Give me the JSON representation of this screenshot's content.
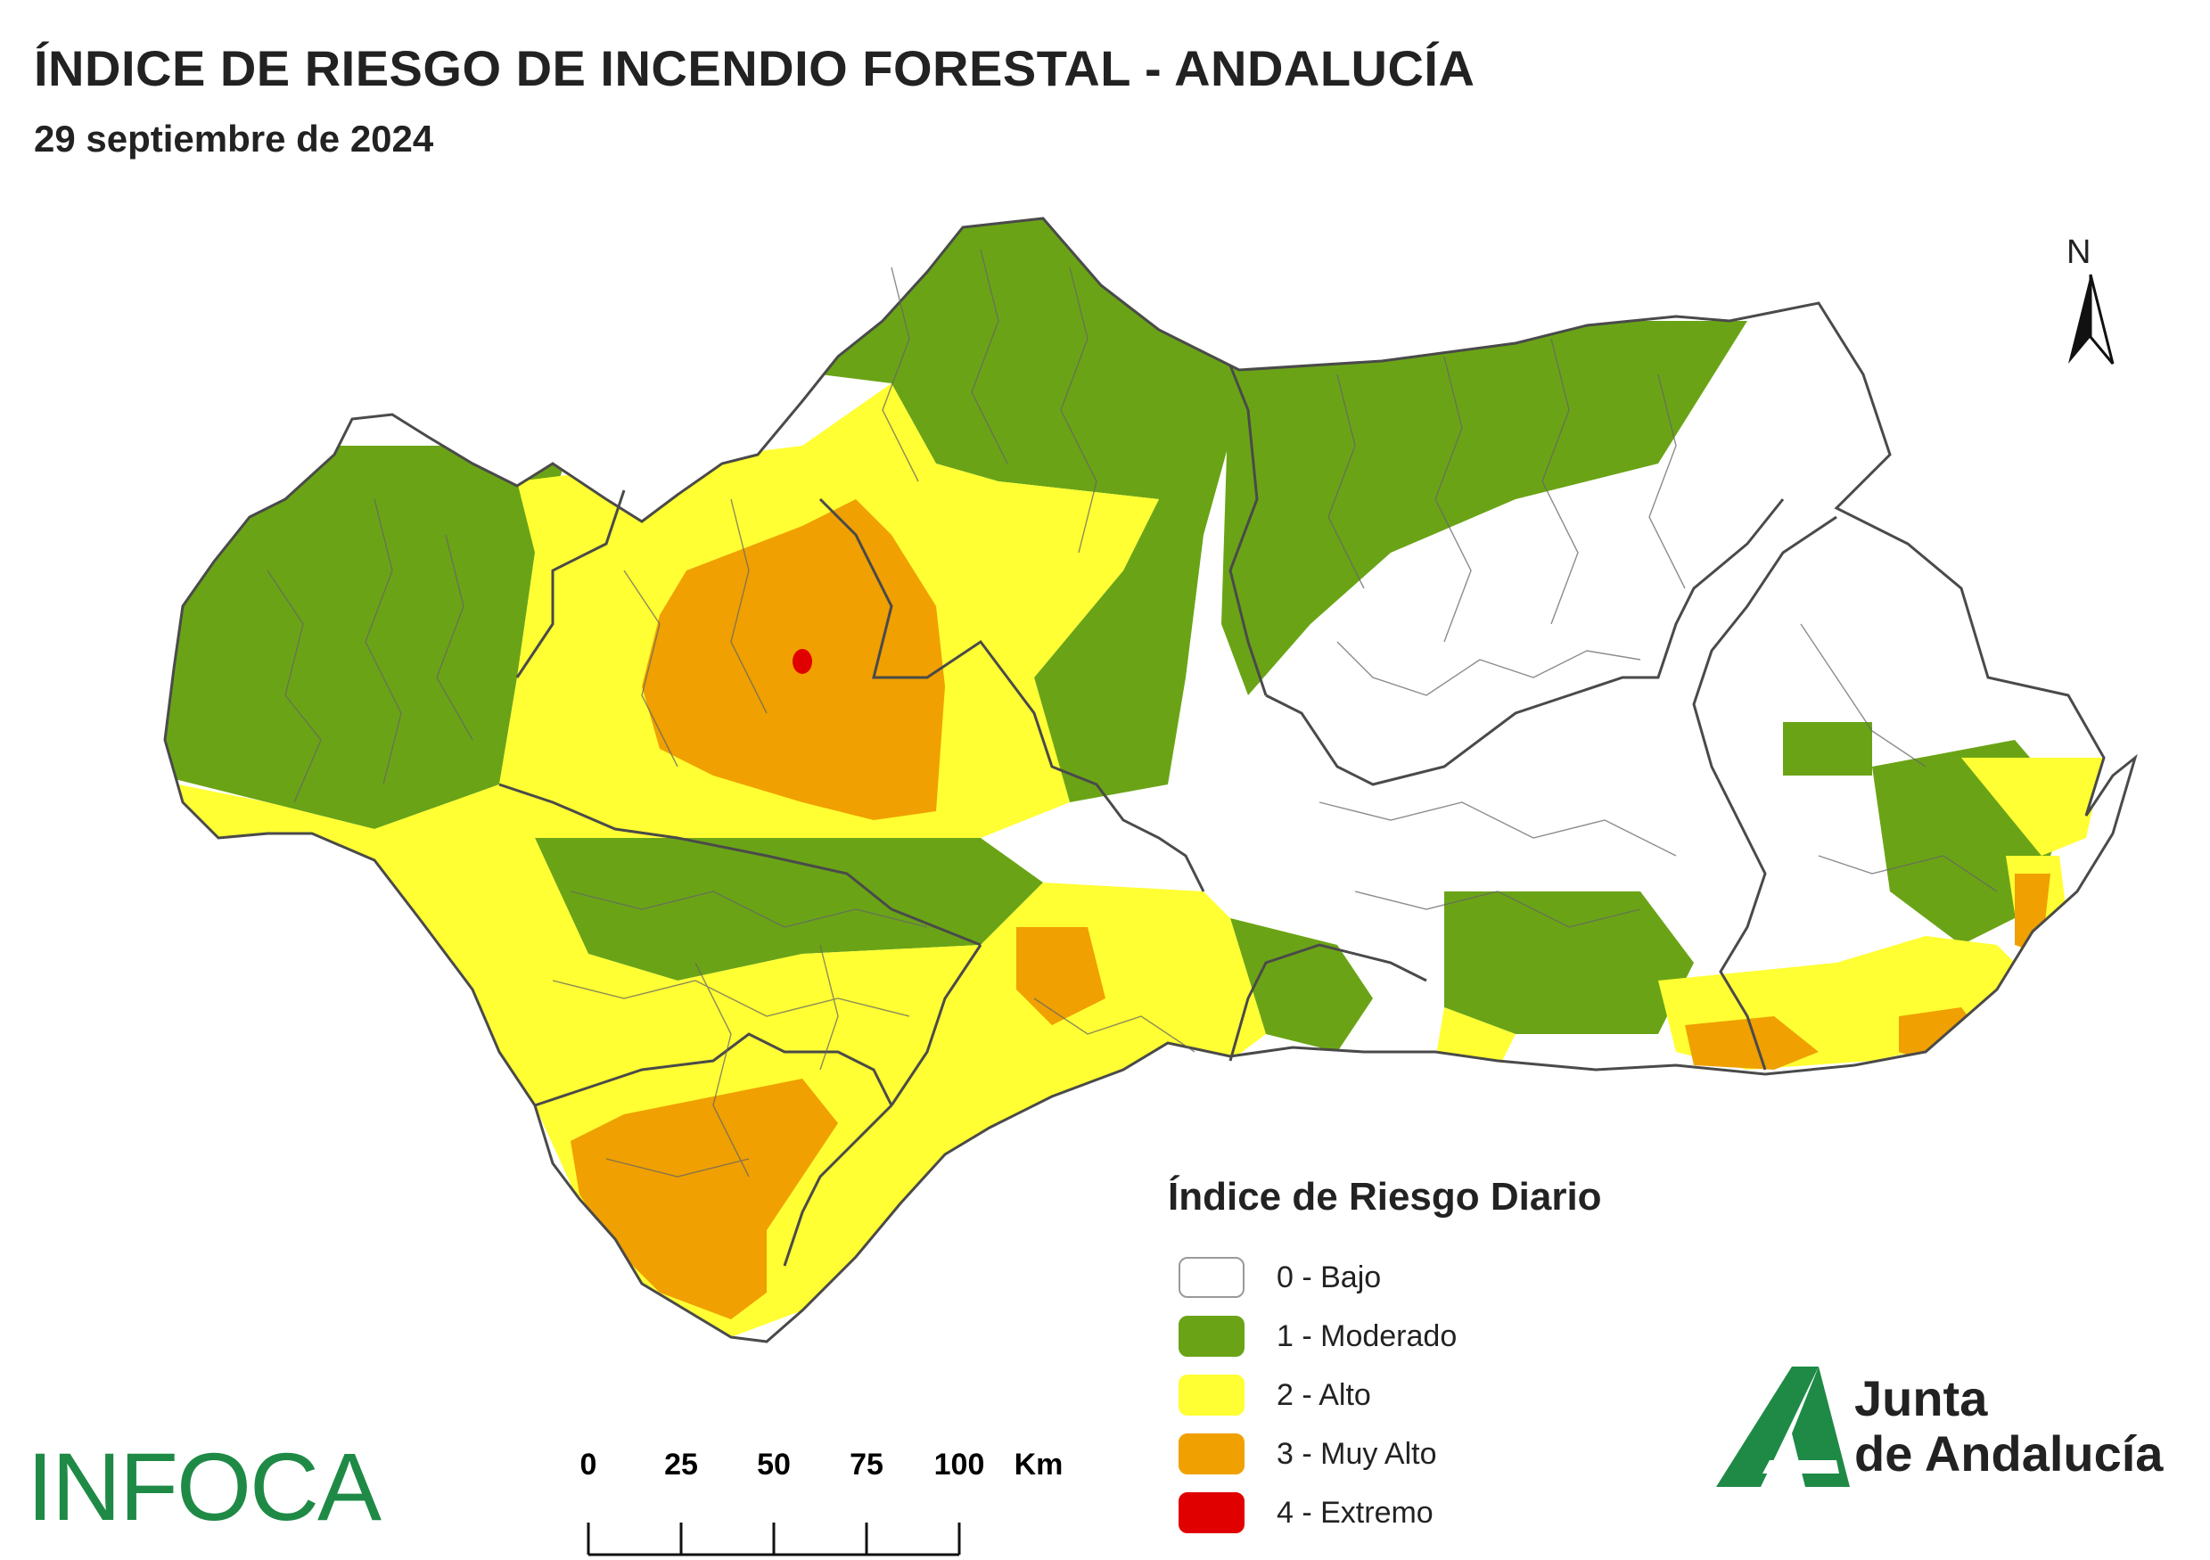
{
  "header": {
    "title": "ÍNDICE DE RIESGO DE INCENDIO FORESTAL - ANDALUCÍA",
    "date": "29 septiembre de 2024"
  },
  "north_arrow": {
    "label": "N"
  },
  "legend": {
    "title": "Índice de Riesgo Diario",
    "items": [
      {
        "label": "0 - Bajo",
        "color": "#ffffff"
      },
      {
        "label": "1 - Moderado",
        "color": "#6aa416"
      },
      {
        "label": "2 - Alto",
        "color": "#ffff33"
      },
      {
        "label": "3 - Muy Alto",
        "color": "#f0a000"
      },
      {
        "label": "4 - Extremo",
        "color": "#e00000"
      }
    ]
  },
  "scale_bar": {
    "ticks": [
      "0",
      "25",
      "50",
      "75",
      "100"
    ],
    "unit": "Km"
  },
  "logos": {
    "infoca": "INFOCA",
    "junta_line1": "Junta",
    "junta_line2": "de Andalucía"
  },
  "colors": {
    "bajo": "#ffffff",
    "moderado": "#6aa416",
    "alto": "#ffff33",
    "muy_alto": "#f0a000",
    "extremo": "#e00000",
    "border": "#4a4a4a",
    "brand_green": "#1e8a46"
  }
}
